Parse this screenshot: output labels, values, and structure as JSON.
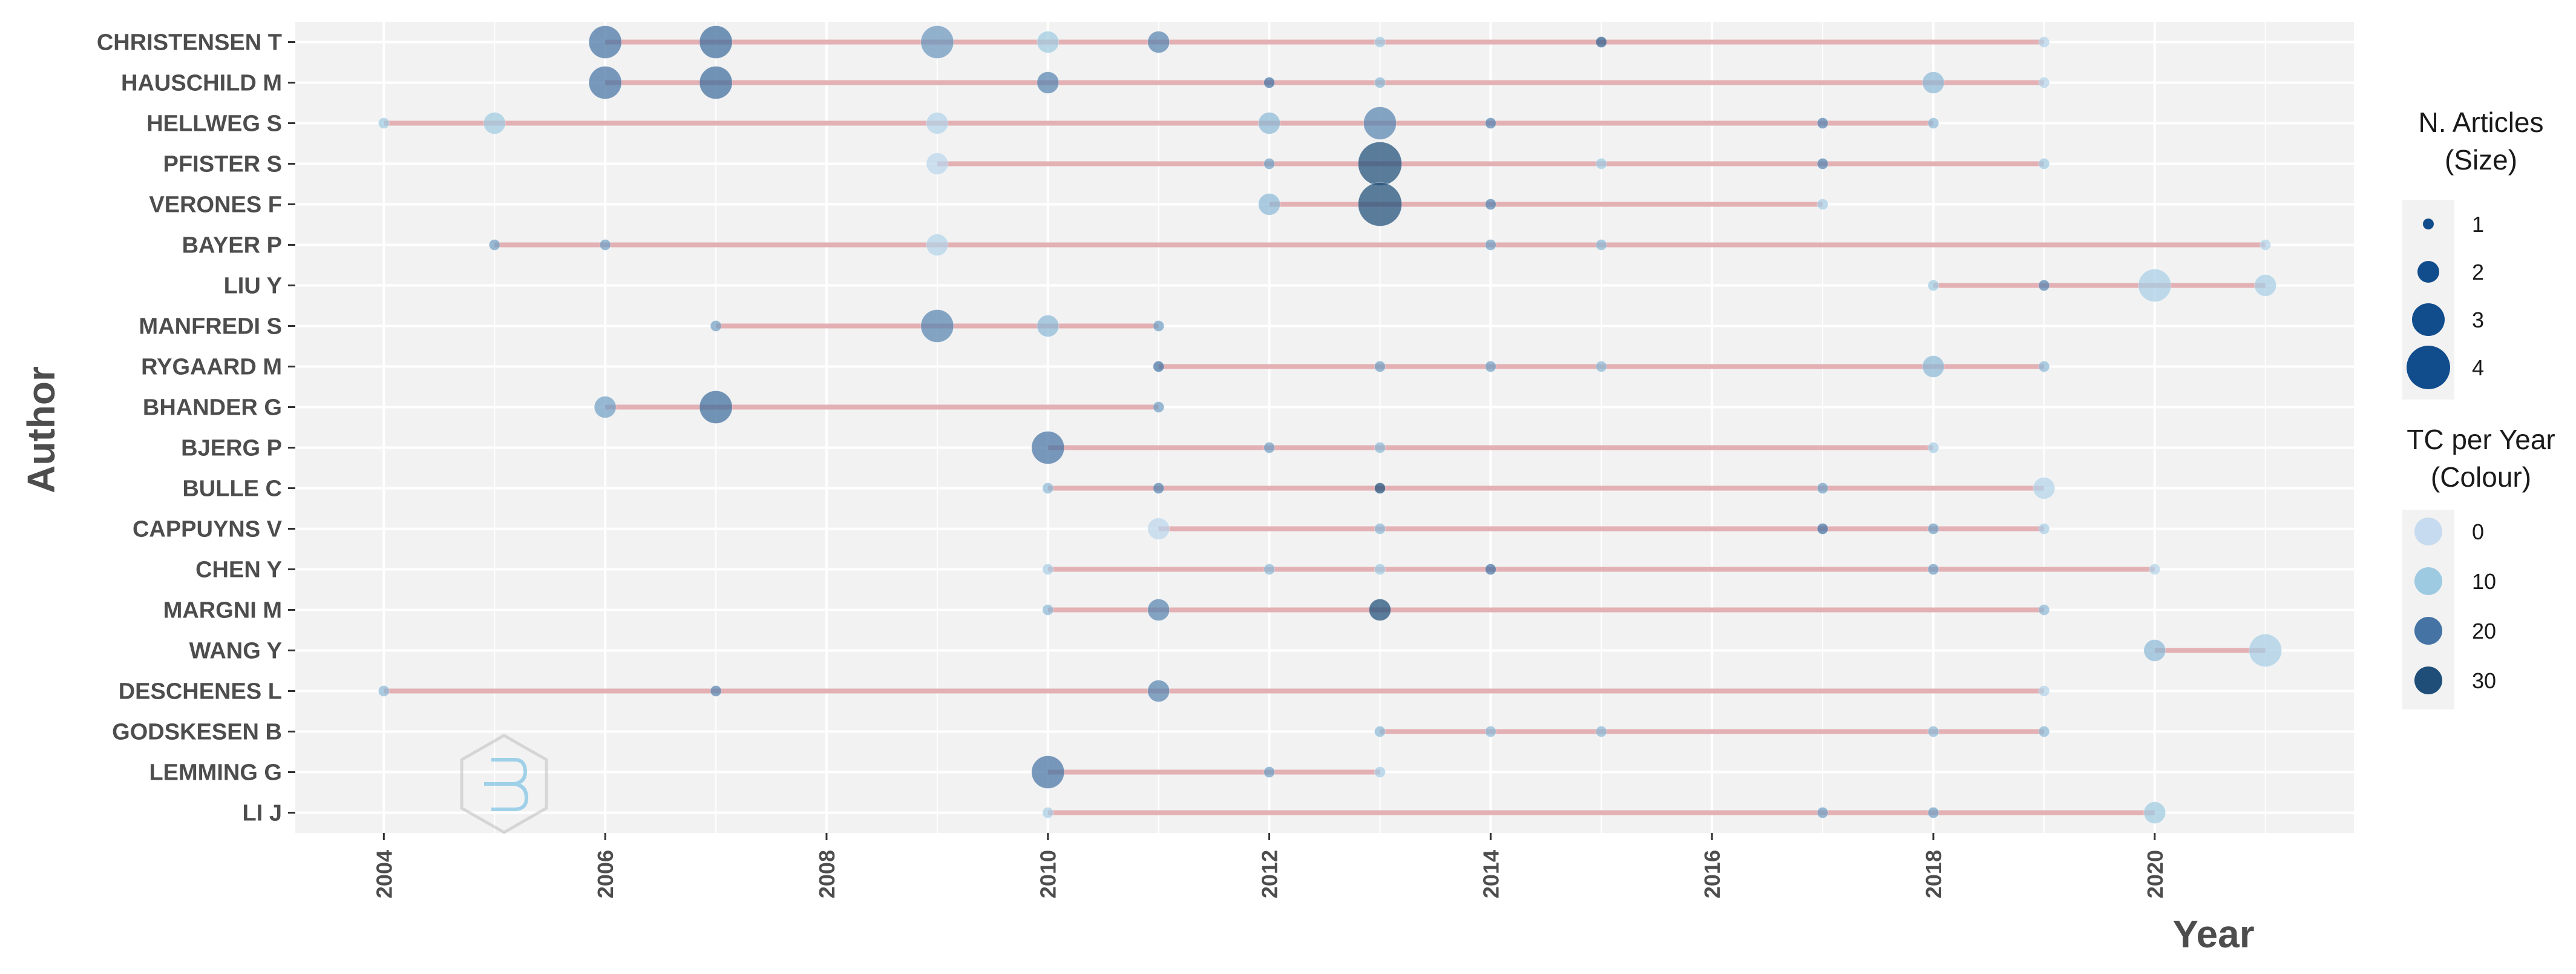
{
  "chart_data": {
    "type": "scatter",
    "title": "",
    "xlabel": "Year",
    "ylabel": "Author",
    "xlim": [
      2003.2,
      2021.8
    ],
    "x_ticks": [
      2004,
      2006,
      2008,
      2010,
      2012,
      2014,
      2016,
      2018,
      2020
    ],
    "authors": [
      "CHRISTENSEN T",
      "HAUSCHILD M",
      "HELLWEG S",
      "PFISTER S",
      "VERONES F",
      "BAYER P",
      "LIU Y",
      "MANFREDI S",
      "RYGAARD M",
      "BHANDER G",
      "BJERG P",
      "BULLE C",
      "CAPPUYNS V",
      "CHEN Y",
      "MARGNI M",
      "WANG Y",
      "DESCHENES L",
      "GODSKESEN B",
      "LEMMING G",
      "LI J"
    ],
    "timelines": [
      {
        "author": "CHRISTENSEN T",
        "start": 2006,
        "end": 2019
      },
      {
        "author": "HAUSCHILD M",
        "start": 2006,
        "end": 2019
      },
      {
        "author": "HELLWEG S",
        "start": 2004,
        "end": 2018
      },
      {
        "author": "PFISTER S",
        "start": 2009,
        "end": 2019
      },
      {
        "author": "VERONES F",
        "start": 2012,
        "end": 2017
      },
      {
        "author": "BAYER P",
        "start": 2005,
        "end": 2021
      },
      {
        "author": "LIU Y",
        "start": 2018,
        "end": 2021
      },
      {
        "author": "MANFREDI S",
        "start": 2007,
        "end": 2011
      },
      {
        "author": "RYGAARD M",
        "start": 2011,
        "end": 2019
      },
      {
        "author": "BHANDER G",
        "start": 2006,
        "end": 2011
      },
      {
        "author": "BJERG P",
        "start": 2010,
        "end": 2018
      },
      {
        "author": "BULLE C",
        "start": 2010,
        "end": 2019
      },
      {
        "author": "CAPPUYNS V",
        "start": 2011,
        "end": 2019
      },
      {
        "author": "CHEN Y",
        "start": 2010,
        "end": 2020
      },
      {
        "author": "MARGNI M",
        "start": 2010,
        "end": 2019
      },
      {
        "author": "WANG Y",
        "start": 2020,
        "end": 2021
      },
      {
        "author": "DESCHENES L",
        "start": 2004,
        "end": 2019
      },
      {
        "author": "GODSKESEN B",
        "start": 2013,
        "end": 2019
      },
      {
        "author": "LEMMING G",
        "start": 2010,
        "end": 2013
      },
      {
        "author": "LI J",
        "start": 2010,
        "end": 2020
      }
    ],
    "points": [
      {
        "author": "CHRISTENSEN T",
        "year": 2006,
        "articles": 3,
        "tc_per_year": 20
      },
      {
        "author": "CHRISTENSEN T",
        "year": 2007,
        "articles": 3,
        "tc_per_year": 22
      },
      {
        "author": "CHRISTENSEN T",
        "year": 2009,
        "articles": 3,
        "tc_per_year": 16
      },
      {
        "author": "CHRISTENSEN T",
        "year": 2010,
        "articles": 2,
        "tc_per_year": 10
      },
      {
        "author": "CHRISTENSEN T",
        "year": 2011,
        "articles": 2,
        "tc_per_year": 18
      },
      {
        "author": "CHRISTENSEN T",
        "year": 2013,
        "articles": 1,
        "tc_per_year": 10
      },
      {
        "author": "CHRISTENSEN T",
        "year": 2015,
        "articles": 1,
        "tc_per_year": 25
      },
      {
        "author": "CHRISTENSEN T",
        "year": 2019,
        "articles": 1,
        "tc_per_year": 5
      },
      {
        "author": "HAUSCHILD M",
        "year": 2006,
        "articles": 3,
        "tc_per_year": 20
      },
      {
        "author": "HAUSCHILD M",
        "year": 2007,
        "articles": 3,
        "tc_per_year": 22
      },
      {
        "author": "HAUSCHILD M",
        "year": 2010,
        "articles": 2,
        "tc_per_year": 18
      },
      {
        "author": "HAUSCHILD M",
        "year": 2012,
        "articles": 1,
        "tc_per_year": 20
      },
      {
        "author": "HAUSCHILD M",
        "year": 2013,
        "articles": 1,
        "tc_per_year": 12
      },
      {
        "author": "HAUSCHILD M",
        "year": 2018,
        "articles": 2,
        "tc_per_year": 12
      },
      {
        "author": "HAUSCHILD M",
        "year": 2019,
        "articles": 1,
        "tc_per_year": 5
      },
      {
        "author": "HELLWEG S",
        "year": 2004,
        "articles": 1,
        "tc_per_year": 10
      },
      {
        "author": "HELLWEG S",
        "year": 2005,
        "articles": 2,
        "tc_per_year": 10
      },
      {
        "author": "HELLWEG S",
        "year": 2009,
        "articles": 2,
        "tc_per_year": 5
      },
      {
        "author": "HELLWEG S",
        "year": 2012,
        "articles": 2,
        "tc_per_year": 12
      },
      {
        "author": "HELLWEG S",
        "year": 2013,
        "articles": 3,
        "tc_per_year": 18
      },
      {
        "author": "HELLWEG S",
        "year": 2014,
        "articles": 1,
        "tc_per_year": 18
      },
      {
        "author": "HELLWEG S",
        "year": 2017,
        "articles": 1,
        "tc_per_year": 18
      },
      {
        "author": "HELLWEG S",
        "year": 2018,
        "articles": 1,
        "tc_per_year": 12
      },
      {
        "author": "PFISTER S",
        "year": 2009,
        "articles": 2,
        "tc_per_year": 3
      },
      {
        "author": "PFISTER S",
        "year": 2012,
        "articles": 1,
        "tc_per_year": 15
      },
      {
        "author": "PFISTER S",
        "year": 2013,
        "articles": 4,
        "tc_per_year": 35
      },
      {
        "author": "PFISTER S",
        "year": 2015,
        "articles": 1,
        "tc_per_year": 10
      },
      {
        "author": "PFISTER S",
        "year": 2017,
        "articles": 1,
        "tc_per_year": 18
      },
      {
        "author": "PFISTER S",
        "year": 2019,
        "articles": 1,
        "tc_per_year": 10
      },
      {
        "author": "VERONES F",
        "year": 2012,
        "articles": 2,
        "tc_per_year": 12
      },
      {
        "author": "VERONES F",
        "year": 2013,
        "articles": 4,
        "tc_per_year": 35
      },
      {
        "author": "VERONES F",
        "year": 2014,
        "articles": 1,
        "tc_per_year": 18
      },
      {
        "author": "VERONES F",
        "year": 2017,
        "articles": 1,
        "tc_per_year": 8
      },
      {
        "author": "BAYER P",
        "year": 2005,
        "articles": 1,
        "tc_per_year": 15
      },
      {
        "author": "BAYER P",
        "year": 2006,
        "articles": 1,
        "tc_per_year": 15
      },
      {
        "author": "BAYER P",
        "year": 2009,
        "articles": 2,
        "tc_per_year": 5
      },
      {
        "author": "BAYER P",
        "year": 2014,
        "articles": 1,
        "tc_per_year": 15
      },
      {
        "author": "BAYER P",
        "year": 2015,
        "articles": 1,
        "tc_per_year": 12
      },
      {
        "author": "BAYER P",
        "year": 2021,
        "articles": 1,
        "tc_per_year": 5
      },
      {
        "author": "LIU Y",
        "year": 2018,
        "articles": 1,
        "tc_per_year": 10
      },
      {
        "author": "LIU Y",
        "year": 2019,
        "articles": 1,
        "tc_per_year": 18
      },
      {
        "author": "LIU Y",
        "year": 2020,
        "articles": 3,
        "tc_per_year": 8
      },
      {
        "author": "LIU Y",
        "year": 2021,
        "articles": 2,
        "tc_per_year": 8
      },
      {
        "author": "MANFREDI S",
        "year": 2007,
        "articles": 1,
        "tc_per_year": 15
      },
      {
        "author": "MANFREDI S",
        "year": 2009,
        "articles": 3,
        "tc_per_year": 18
      },
      {
        "author": "MANFREDI S",
        "year": 2010,
        "articles": 2,
        "tc_per_year": 12
      },
      {
        "author": "MANFREDI S",
        "year": 2011,
        "articles": 1,
        "tc_per_year": 15
      },
      {
        "author": "RYGAARD M",
        "year": 2011,
        "articles": 1,
        "tc_per_year": 20
      },
      {
        "author": "RYGAARD M",
        "year": 2013,
        "articles": 1,
        "tc_per_year": 15
      },
      {
        "author": "RYGAARD M",
        "year": 2014,
        "articles": 1,
        "tc_per_year": 15
      },
      {
        "author": "RYGAARD M",
        "year": 2015,
        "articles": 1,
        "tc_per_year": 12
      },
      {
        "author": "RYGAARD M",
        "year": 2018,
        "articles": 2,
        "tc_per_year": 12
      },
      {
        "author": "RYGAARD M",
        "year": 2019,
        "articles": 1,
        "tc_per_year": 12
      },
      {
        "author": "BHANDER G",
        "year": 2006,
        "articles": 2,
        "tc_per_year": 15
      },
      {
        "author": "BHANDER G",
        "year": 2007,
        "articles": 3,
        "tc_per_year": 22
      },
      {
        "author": "BHANDER G",
        "year": 2011,
        "articles": 1,
        "tc_per_year": 15
      },
      {
        "author": "BJERG P",
        "year": 2010,
        "articles": 3,
        "tc_per_year": 20
      },
      {
        "author": "BJERG P",
        "year": 2012,
        "articles": 1,
        "tc_per_year": 15
      },
      {
        "author": "BJERG P",
        "year": 2013,
        "articles": 1,
        "tc_per_year": 12
      },
      {
        "author": "BJERG P",
        "year": 2018,
        "articles": 1,
        "tc_per_year": 8
      },
      {
        "author": "BULLE C",
        "year": 2010,
        "articles": 1,
        "tc_per_year": 12
      },
      {
        "author": "BULLE C",
        "year": 2011,
        "articles": 1,
        "tc_per_year": 18
      },
      {
        "author": "BULLE C",
        "year": 2013,
        "articles": 1,
        "tc_per_year": 30
      },
      {
        "author": "BULLE C",
        "year": 2017,
        "articles": 1,
        "tc_per_year": 15
      },
      {
        "author": "BULLE C",
        "year": 2019,
        "articles": 2,
        "tc_per_year": 5
      },
      {
        "author": "CAPPUYNS V",
        "year": 2011,
        "articles": 2,
        "tc_per_year": 3
      },
      {
        "author": "CAPPUYNS V",
        "year": 2013,
        "articles": 1,
        "tc_per_year": 12
      },
      {
        "author": "CAPPUYNS V",
        "year": 2017,
        "articles": 1,
        "tc_per_year": 20
      },
      {
        "author": "CAPPUYNS V",
        "year": 2018,
        "articles": 1,
        "tc_per_year": 15
      },
      {
        "author": "CAPPUYNS V",
        "year": 2019,
        "articles": 1,
        "tc_per_year": 8
      },
      {
        "author": "CHEN Y",
        "year": 2010,
        "articles": 1,
        "tc_per_year": 8
      },
      {
        "author": "CHEN Y",
        "year": 2012,
        "articles": 1,
        "tc_per_year": 12
      },
      {
        "author": "CHEN Y",
        "year": 2013,
        "articles": 1,
        "tc_per_year": 10
      },
      {
        "author": "CHEN Y",
        "year": 2014,
        "articles": 1,
        "tc_per_year": 20
      },
      {
        "author": "CHEN Y",
        "year": 2018,
        "articles": 1,
        "tc_per_year": 15
      },
      {
        "author": "CHEN Y",
        "year": 2020,
        "articles": 1,
        "tc_per_year": 5
      },
      {
        "author": "MARGNI M",
        "year": 2010,
        "articles": 1,
        "tc_per_year": 12
      },
      {
        "author": "MARGNI M",
        "year": 2011,
        "articles": 2,
        "tc_per_year": 18
      },
      {
        "author": "MARGNI M",
        "year": 2013,
        "articles": 2,
        "tc_per_year": 32
      },
      {
        "author": "MARGNI M",
        "year": 2019,
        "articles": 1,
        "tc_per_year": 12
      },
      {
        "author": "WANG Y",
        "year": 2020,
        "articles": 2,
        "tc_per_year": 12
      },
      {
        "author": "WANG Y",
        "year": 2021,
        "articles": 3,
        "tc_per_year": 8
      },
      {
        "author": "DESCHENES L",
        "year": 2004,
        "articles": 1,
        "tc_per_year": 12
      },
      {
        "author": "DESCHENES L",
        "year": 2007,
        "articles": 1,
        "tc_per_year": 18
      },
      {
        "author": "DESCHENES L",
        "year": 2011,
        "articles": 2,
        "tc_per_year": 18
      },
      {
        "author": "DESCHENES L",
        "year": 2019,
        "articles": 1,
        "tc_per_year": 5
      },
      {
        "author": "GODSKESEN B",
        "year": 2013,
        "articles": 1,
        "tc_per_year": 12
      },
      {
        "author": "GODSKESEN B",
        "year": 2014,
        "articles": 1,
        "tc_per_year": 12
      },
      {
        "author": "GODSKESEN B",
        "year": 2015,
        "articles": 1,
        "tc_per_year": 12
      },
      {
        "author": "GODSKESEN B",
        "year": 2018,
        "articles": 1,
        "tc_per_year": 12
      },
      {
        "author": "GODSKESEN B",
        "year": 2019,
        "articles": 1,
        "tc_per_year": 12
      },
      {
        "author": "LEMMING G",
        "year": 2010,
        "articles": 3,
        "tc_per_year": 20
      },
      {
        "author": "LEMMING G",
        "year": 2012,
        "articles": 1,
        "tc_per_year": 15
      },
      {
        "author": "LEMMING G",
        "year": 2013,
        "articles": 1,
        "tc_per_year": 8
      },
      {
        "author": "LI J",
        "year": 2010,
        "articles": 1,
        "tc_per_year": 8
      },
      {
        "author": "LI J",
        "year": 2017,
        "articles": 1,
        "tc_per_year": 15
      },
      {
        "author": "LI J",
        "year": 2018,
        "articles": 1,
        "tc_per_year": 15
      },
      {
        "author": "LI J",
        "year": 2020,
        "articles": 2,
        "tc_per_year": 10
      }
    ],
    "size_legend": {
      "title": "N. Articles",
      "subtitle": "(Size)",
      "values": [
        1,
        2,
        3,
        4
      ]
    },
    "color_legend": {
      "title": "TC per Year",
      "subtitle": "(Colour)",
      "values": [
        0,
        10,
        20,
        30
      ]
    },
    "colors": {
      "panel_background": "#f2f2f2",
      "grid": "#ffffff",
      "timeline": "#e3b0b4",
      "size_legend_point": "#114d8c",
      "color_scale": [
        "#c6dbef",
        "#9ecae1",
        "#4573a4",
        "#1f4e79"
      ],
      "text": "#4d4d4d"
    },
    "grid": true,
    "legend_position": "right"
  }
}
